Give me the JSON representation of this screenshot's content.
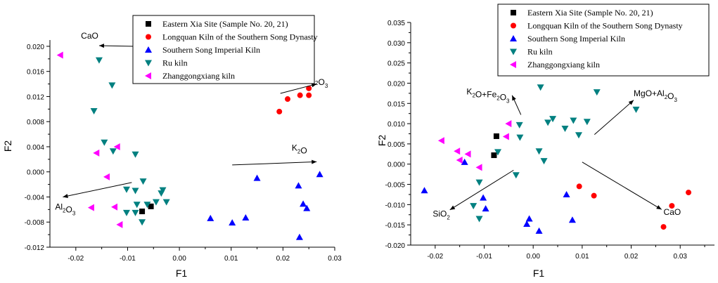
{
  "legend_entries": [
    {
      "label": "Eastern Xia Site (Sample No. 20, 21)",
      "marker": "square",
      "color": "#000000"
    },
    {
      "label": "Longquan Kiln of the Southern Song Dynasty",
      "marker": "circle",
      "color": "#ff0000"
    },
    {
      "label": "Southern Song Imperial Kiln",
      "marker": "triangle-up",
      "color": "#0000ff"
    },
    {
      "label": "Ru kiln",
      "marker": "triangle-down",
      "color": "#008080"
    },
    {
      "label": "Zhanggongxiang kiln",
      "marker": "triangle-left",
      "color": "#ff00ff"
    }
  ],
  "chart_data": [
    {
      "type": "scatter",
      "title": "",
      "xlabel": "F1",
      "ylabel": "F2",
      "xlim": [
        -0.025,
        0.03
      ],
      "ylim": [
        -0.012,
        0.021
      ],
      "xticks": [
        -0.02,
        -0.01,
        0.0,
        0.01,
        0.02,
        0.03
      ],
      "xtick_labels": [
        "-0.02",
        "-0.01",
        "0.00",
        "0.01",
        "0.02",
        "0.03"
      ],
      "yticks": [
        -0.012,
        -0.008,
        -0.004,
        0.0,
        0.004,
        0.008,
        0.012,
        0.016,
        0.02
      ],
      "ytick_labels": [
        "-0.012",
        "-0.008",
        "-0.004",
        "0.000",
        "0.004",
        "0.008",
        "0.012",
        "0.016",
        "0.020"
      ],
      "grid": false,
      "legend_position": "top-right",
      "series": [
        {
          "name": "Eastern Xia Site (Sample No. 20, 21)",
          "points": [
            [
              -0.0072,
              -0.0063
            ],
            [
              -0.0055,
              -0.0055
            ]
          ]
        },
        {
          "name": "Longquan Kiln of the Southern Song Dynasty",
          "points": [
            [
              0.0193,
              0.0096
            ],
            [
              0.0209,
              0.0116
            ],
            [
              0.0233,
              0.0122
            ],
            [
              0.025,
              0.0122
            ],
            [
              0.025,
              0.0133
            ]
          ]
        },
        {
          "name": "Southern Song Imperial Kiln",
          "points": [
            [
              0.006,
              -0.0074
            ],
            [
              0.0102,
              -0.0081
            ],
            [
              0.0128,
              -0.0073
            ],
            [
              0.015,
              -0.001
            ],
            [
              0.023,
              -0.0022
            ],
            [
              0.0271,
              -0.0004
            ],
            [
              0.0239,
              -0.0051
            ],
            [
              0.0246,
              -0.0058
            ],
            [
              0.0232,
              -0.0104
            ]
          ]
        },
        {
          "name": "Ru kiln",
          "points": [
            [
              -0.0155,
              0.0178
            ],
            [
              -0.013,
              0.0138
            ],
            [
              -0.0165,
              0.0097
            ],
            [
              -0.0145,
              0.0047
            ],
            [
              -0.0128,
              0.0033
            ],
            [
              -0.0085,
              0.0028
            ],
            [
              -0.007,
              -0.0015
            ],
            [
              -0.0102,
              -0.0028
            ],
            [
              -0.0085,
              -0.003
            ],
            [
              -0.0032,
              -0.0029
            ],
            [
              -0.0035,
              -0.0034
            ],
            [
              -0.0082,
              -0.0052
            ],
            [
              -0.0062,
              -0.0052
            ],
            [
              -0.0045,
              -0.0048
            ],
            [
              -0.0025,
              -0.0048
            ],
            [
              -0.0102,
              -0.0065
            ],
            [
              -0.0085,
              -0.0065
            ],
            [
              -0.0072,
              -0.008
            ]
          ]
        },
        {
          "name": "Zhanggongxiang kiln",
          "points": [
            [
              -0.023,
              0.0186
            ],
            [
              -0.016,
              0.003
            ],
            [
              -0.012,
              0.004
            ],
            [
              -0.014,
              -0.0008
            ],
            [
              -0.017,
              -0.0057
            ],
            [
              -0.0125,
              -0.0056
            ],
            [
              -0.0115,
              -0.0084
            ]
          ]
        }
      ],
      "loading_vectors": [
        {
          "label": "CaO",
          "from": [
            -0.0085,
            0.02
          ],
          "to": [
            -0.0155,
            0.0201
          ],
          "text_at": [
            -0.019,
            0.0212
          ]
        },
        {
          "label": "Fe2O3",
          "from": [
            0.0195,
            0.0125
          ],
          "to": [
            0.0265,
            0.014
          ],
          "text_at": [
            0.0243,
            0.0143
          ]
        },
        {
          "label": "K2O",
          "from": [
            0.0102,
            0.0011
          ],
          "to": [
            0.0265,
            0.0016
          ],
          "text_at": [
            0.0217,
            0.0034
          ]
        },
        {
          "label": "Al2O3",
          "from": [
            -0.0092,
            -0.0017
          ],
          "to": [
            -0.0225,
            -0.004
          ],
          "text_at": [
            -0.024,
            -0.006
          ]
        }
      ]
    },
    {
      "type": "scatter",
      "title": "",
      "xlabel": "F1",
      "ylabel": "F2",
      "xlim": [
        -0.025,
        0.037
      ],
      "ylim": [
        -0.02,
        0.035
      ],
      "xticks": [
        -0.02,
        -0.01,
        0.0,
        0.01,
        0.02,
        0.03
      ],
      "xtick_labels": [
        "-0.02",
        "-0.01",
        "0.00",
        "0.01",
        "0.02",
        "0.03"
      ],
      "yticks": [
        -0.02,
        -0.015,
        -0.01,
        -0.005,
        0.0,
        0.005,
        0.01,
        0.015,
        0.02,
        0.025,
        0.03,
        0.035
      ],
      "ytick_labels": [
        "-0.020",
        "-0.015",
        "-0.010",
        "-0.005",
        "0.000",
        "0.005",
        "0.010",
        "0.015",
        "0.020",
        "0.025",
        "0.030",
        "0.035"
      ],
      "grid": false,
      "legend_position": "top-right",
      "series": [
        {
          "name": "Eastern Xia Site (Sample No. 20, 21)",
          "points": [
            [
              -0.0075,
              0.0069
            ],
            [
              -0.008,
              0.0022
            ]
          ]
        },
        {
          "name": "Longquan Kiln of the Southern Song Dynasty",
          "points": [
            [
              0.0094,
              -0.0055
            ],
            [
              0.0124,
              -0.0078
            ],
            [
              0.0317,
              -0.007
            ],
            [
              0.0283,
              -0.0103
            ],
            [
              0.0266,
              -0.0155
            ]
          ]
        },
        {
          "name": "Southern Song Imperial Kiln",
          "points": [
            [
              -0.0222,
              -0.0065
            ],
            [
              -0.014,
              0.0005
            ],
            [
              -0.0102,
              -0.0083
            ],
            [
              -0.0097,
              -0.011
            ],
            [
              -0.0008,
              -0.0135
            ],
            [
              -0.0013,
              -0.0148
            ],
            [
              0.0012,
              -0.0165
            ],
            [
              0.0068,
              -0.0075
            ],
            [
              0.008,
              -0.0138
            ]
          ]
        },
        {
          "name": "Ru kiln",
          "points": [
            [
              -0.0028,
              0.0097
            ],
            [
              -0.0027,
              0.0066
            ],
            [
              -0.0072,
              0.003
            ],
            [
              -0.0035,
              -0.0027
            ],
            [
              -0.011,
              -0.0045
            ],
            [
              -0.0122,
              -0.0103
            ],
            [
              -0.011,
              -0.0135
            ],
            [
              0.0015,
              0.019
            ],
            [
              0.013,
              0.0178
            ],
            [
              0.021,
              0.0135
            ],
            [
              0.003,
              0.0103
            ],
            [
              0.004,
              0.0112
            ],
            [
              0.0065,
              0.0088
            ],
            [
              0.0082,
              0.0108
            ],
            [
              0.0093,
              0.0072
            ],
            [
              0.011,
              0.0105
            ],
            [
              0.0012,
              0.0032
            ],
            [
              0.0022,
              0.0008
            ]
          ]
        },
        {
          "name": "Zhanggongxiang kiln",
          "points": [
            [
              -0.005,
              0.01
            ],
            [
              -0.0055,
              0.0068
            ],
            [
              -0.0187,
              0.0058
            ],
            [
              -0.0155,
              0.0032
            ],
            [
              -0.0133,
              0.0025
            ],
            [
              -0.015,
              0.001
            ],
            [
              -0.011,
              -0.0008
            ]
          ]
        }
      ],
      "loading_vectors": [
        {
          "label": "K2O+Fe2O3",
          "from": [
            -0.0025,
            0.0122
          ],
          "to": [
            -0.0043,
            0.017
          ],
          "text_at": [
            -0.0136,
            0.0172
          ]
        },
        {
          "label": "MgO+Al2O3",
          "from": [
            0.0125,
            0.0073
          ],
          "to": [
            0.0205,
            0.0158
          ],
          "text_at": [
            0.0205,
            0.0168
          ]
        },
        {
          "label": "SiO2",
          "from": [
            -0.004,
            -0.0015
          ],
          "to": [
            -0.017,
            -0.0113
          ],
          "text_at": [
            -0.0205,
            -0.013
          ]
        },
        {
          "label": "CaO",
          "from": [
            0.01,
            0.0005
          ],
          "to": [
            0.0262,
            -0.0112
          ],
          "text_at": [
            0.0266,
            -0.0125
          ]
        }
      ]
    }
  ]
}
